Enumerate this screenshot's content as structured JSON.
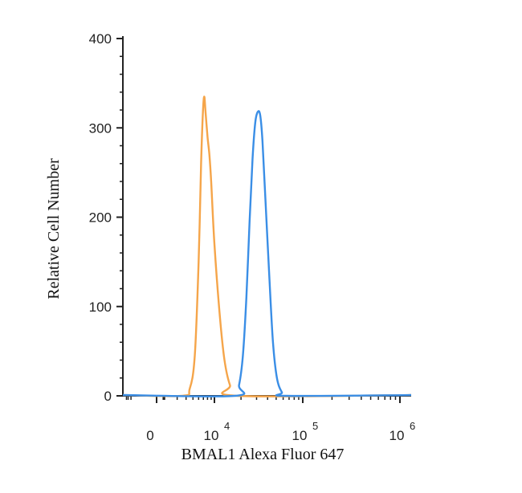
{
  "chart_data": {
    "type": "line",
    "title": "",
    "xlabel": "BMAL1 Alexa Fluor 647",
    "ylabel": "Relative Cell Number",
    "x_scale": "biexponential",
    "x_ticks": [
      {
        "value": 0,
        "base": "0",
        "exp": ""
      },
      {
        "value": 10000,
        "base": "10",
        "exp": "4"
      },
      {
        "value": 100000,
        "base": "10",
        "exp": "5"
      },
      {
        "value": 1000000,
        "base": "10",
        "exp": "6"
      }
    ],
    "y_ticks": [
      0,
      100,
      200,
      300,
      400
    ],
    "ylim": [
      0,
      400
    ],
    "grid": false,
    "colors": {
      "isotype": "#f5a54a",
      "sample": "#3a8ee6",
      "axis": "#222222"
    },
    "series": [
      {
        "color": "#f5a54a",
        "points": [
          [
            3500,
            0
          ],
          [
            4500,
            8
          ],
          [
            5300,
            45
          ],
          [
            6000,
            150
          ],
          [
            6500,
            260
          ],
          [
            6900,
            318
          ],
          [
            7200,
            335
          ],
          [
            7500,
            318
          ],
          [
            8000,
            290
          ],
          [
            8500,
            270
          ],
          [
            9000,
            240
          ],
          [
            10000,
            170
          ],
          [
            11500,
            90
          ],
          [
            13000,
            40
          ],
          [
            15000,
            12
          ],
          [
            18000,
            0
          ]
        ]
      },
      {
        "color": "#3a8ee6",
        "points": [
          [
            17000,
            0
          ],
          [
            19000,
            12
          ],
          [
            21000,
            45
          ],
          [
            23000,
            110
          ],
          [
            25000,
            195
          ],
          [
            27000,
            265
          ],
          [
            29000,
            306
          ],
          [
            31000,
            318
          ],
          [
            33000,
            314
          ],
          [
            35000,
            285
          ],
          [
            38000,
            215
          ],
          [
            42000,
            130
          ],
          [
            46000,
            60
          ],
          [
            51000,
            20
          ],
          [
            58000,
            4
          ],
          [
            66000,
            0
          ]
        ]
      }
    ]
  }
}
